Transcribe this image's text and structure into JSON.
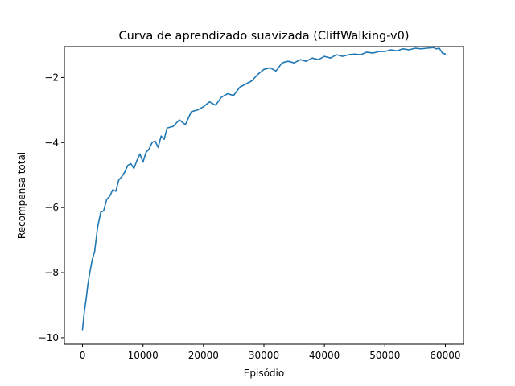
{
  "chart_data": {
    "type": "line",
    "title": "Curva de aprendizado suavizada (CliffWalking-v0)",
    "xlabel": "Episódio",
    "ylabel": "Recompensa total",
    "xlim": [
      -3000,
      63000
    ],
    "ylim": [
      -10.2,
      -1.05
    ],
    "xticks": [
      0,
      10000,
      20000,
      30000,
      40000,
      50000,
      60000
    ],
    "xtick_labels": [
      "0",
      "10000",
      "20000",
      "30000",
      "40000",
      "50000",
      "60000"
    ],
    "yticks": [
      -10,
      -8,
      -6,
      -4,
      -2
    ],
    "ytick_labels": [
      "−10",
      "−8",
      "−6",
      "−4",
      "−2"
    ],
    "grid": false,
    "color": "#1f77b4",
    "series": [
      {
        "x": [
          0,
          300,
          600,
          900,
          1200,
          1600,
          2000,
          2500,
          3000,
          3500,
          4000,
          4500,
          5000,
          5500,
          6000,
          6500,
          7000,
          7500,
          8000,
          8500,
          9000,
          9500,
          10000,
          10500,
          11000,
          11500,
          12000,
          12500,
          13000,
          13500,
          14000,
          15000,
          16000,
          17000,
          18000,
          19000,
          20000,
          21000,
          22000,
          23000,
          24000,
          25000,
          26000,
          27000,
          28000,
          29000,
          30000,
          31000,
          32000,
          33000,
          34000,
          35000,
          36000,
          37000,
          38000,
          39000,
          40000,
          41000,
          42000,
          43000,
          44000,
          45000,
          46000,
          47000,
          48000,
          49000,
          50000,
          51000,
          52000,
          53000,
          54000,
          55000,
          56000,
          57000,
          58000,
          58500,
          59000,
          59500,
          60000
        ],
        "y": [
          -9.75,
          -9.2,
          -8.8,
          -8.35,
          -8.0,
          -7.6,
          -7.35,
          -6.6,
          -6.15,
          -6.1,
          -5.75,
          -5.65,
          -5.45,
          -5.5,
          -5.15,
          -5.05,
          -4.9,
          -4.7,
          -4.65,
          -4.8,
          -4.55,
          -4.35,
          -4.6,
          -4.3,
          -4.2,
          -4.0,
          -3.95,
          -4.15,
          -3.8,
          -3.9,
          -3.55,
          -3.5,
          -3.3,
          -3.45,
          -3.05,
          -3.0,
          -2.9,
          -2.75,
          -2.85,
          -2.6,
          -2.5,
          -2.55,
          -2.3,
          -2.2,
          -2.1,
          -1.9,
          -1.75,
          -1.7,
          -1.8,
          -1.55,
          -1.5,
          -1.55,
          -1.45,
          -1.5,
          -1.4,
          -1.45,
          -1.35,
          -1.4,
          -1.3,
          -1.35,
          -1.3,
          -1.28,
          -1.3,
          -1.22,
          -1.25,
          -1.2,
          -1.2,
          -1.15,
          -1.18,
          -1.12,
          -1.15,
          -1.1,
          -1.12,
          -1.1,
          -1.08,
          -1.12,
          -1.1,
          -1.25,
          -1.28
        ]
      }
    ]
  }
}
